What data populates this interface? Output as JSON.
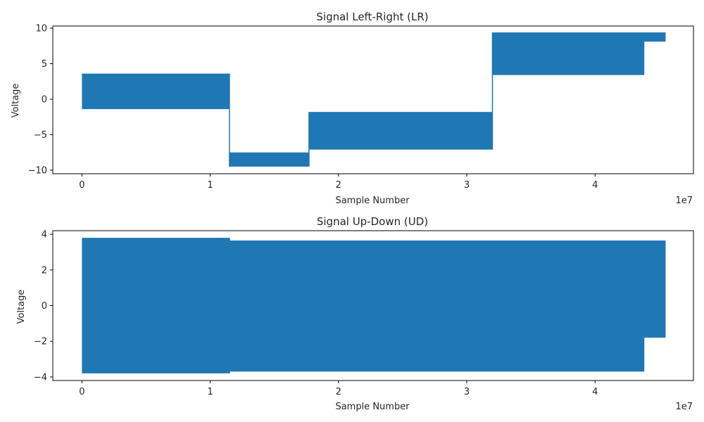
{
  "chart_data": [
    {
      "type": "area",
      "title": "Signal Left-Right (LR)",
      "xlabel": "Sample Number",
      "ylabel": "Voltage",
      "x_offset_label": "1e7",
      "xlim": [
        -2270000,
        47670000
      ],
      "ylim": [
        -10.5,
        10.3
      ],
      "xticks": [
        0,
        10000000,
        20000000,
        30000000,
        40000000
      ],
      "xtick_labels": [
        "0",
        "1",
        "2",
        "3",
        "4"
      ],
      "yticks": [
        -10,
        -5,
        0,
        5,
        10
      ],
      "ytick_labels": [
        "−10",
        "−5",
        "0",
        "5",
        "10"
      ],
      "color": "#1f77b4",
      "grid": false,
      "series": [
        {
          "segments": [
            {
              "x_start": 0,
              "x_end": 11500000,
              "y_min": -1.4,
              "y_max": 3.6
            },
            {
              "x_start": 11500000,
              "x_end": 17700000,
              "y_min": -9.5,
              "y_max": -7.5
            },
            {
              "x_start": 17700000,
              "x_end": 32000000,
              "y_min": -7.1,
              "y_max": -1.8
            },
            {
              "x_start": 32000000,
              "x_end": 43800000,
              "y_min": 3.4,
              "y_max": 9.4
            },
            {
              "x_start": 43800000,
              "x_end": 45500000,
              "y_min": 8.1,
              "y_max": 9.4
            }
          ]
        }
      ]
    },
    {
      "type": "area",
      "title": "Signal Up-Down (UD)",
      "xlabel": "Sample Number",
      "ylabel": "Voltage",
      "x_offset_label": "1e7",
      "xlim": [
        -2270000,
        47670000
      ],
      "ylim": [
        -4.2,
        4.2
      ],
      "xticks": [
        0,
        10000000,
        20000000,
        30000000,
        40000000
      ],
      "xtick_labels": [
        "0",
        "1",
        "2",
        "3",
        "4"
      ],
      "yticks": [
        -4,
        -2,
        0,
        2,
        4
      ],
      "ytick_labels": [
        "−4",
        "−2",
        "0",
        "2",
        "4"
      ],
      "color": "#1f77b4",
      "grid": false,
      "series": [
        {
          "segments": [
            {
              "x_start": 0,
              "x_end": 11500000,
              "y_min": -3.8,
              "y_max": 3.8
            },
            {
              "x_start": 11500000,
              "x_end": 43800000,
              "y_min": -3.7,
              "y_max": 3.65
            },
            {
              "x_start": 43800000,
              "x_end": 45500000,
              "y_min": -1.8,
              "y_max": 3.65
            }
          ]
        }
      ]
    }
  ]
}
